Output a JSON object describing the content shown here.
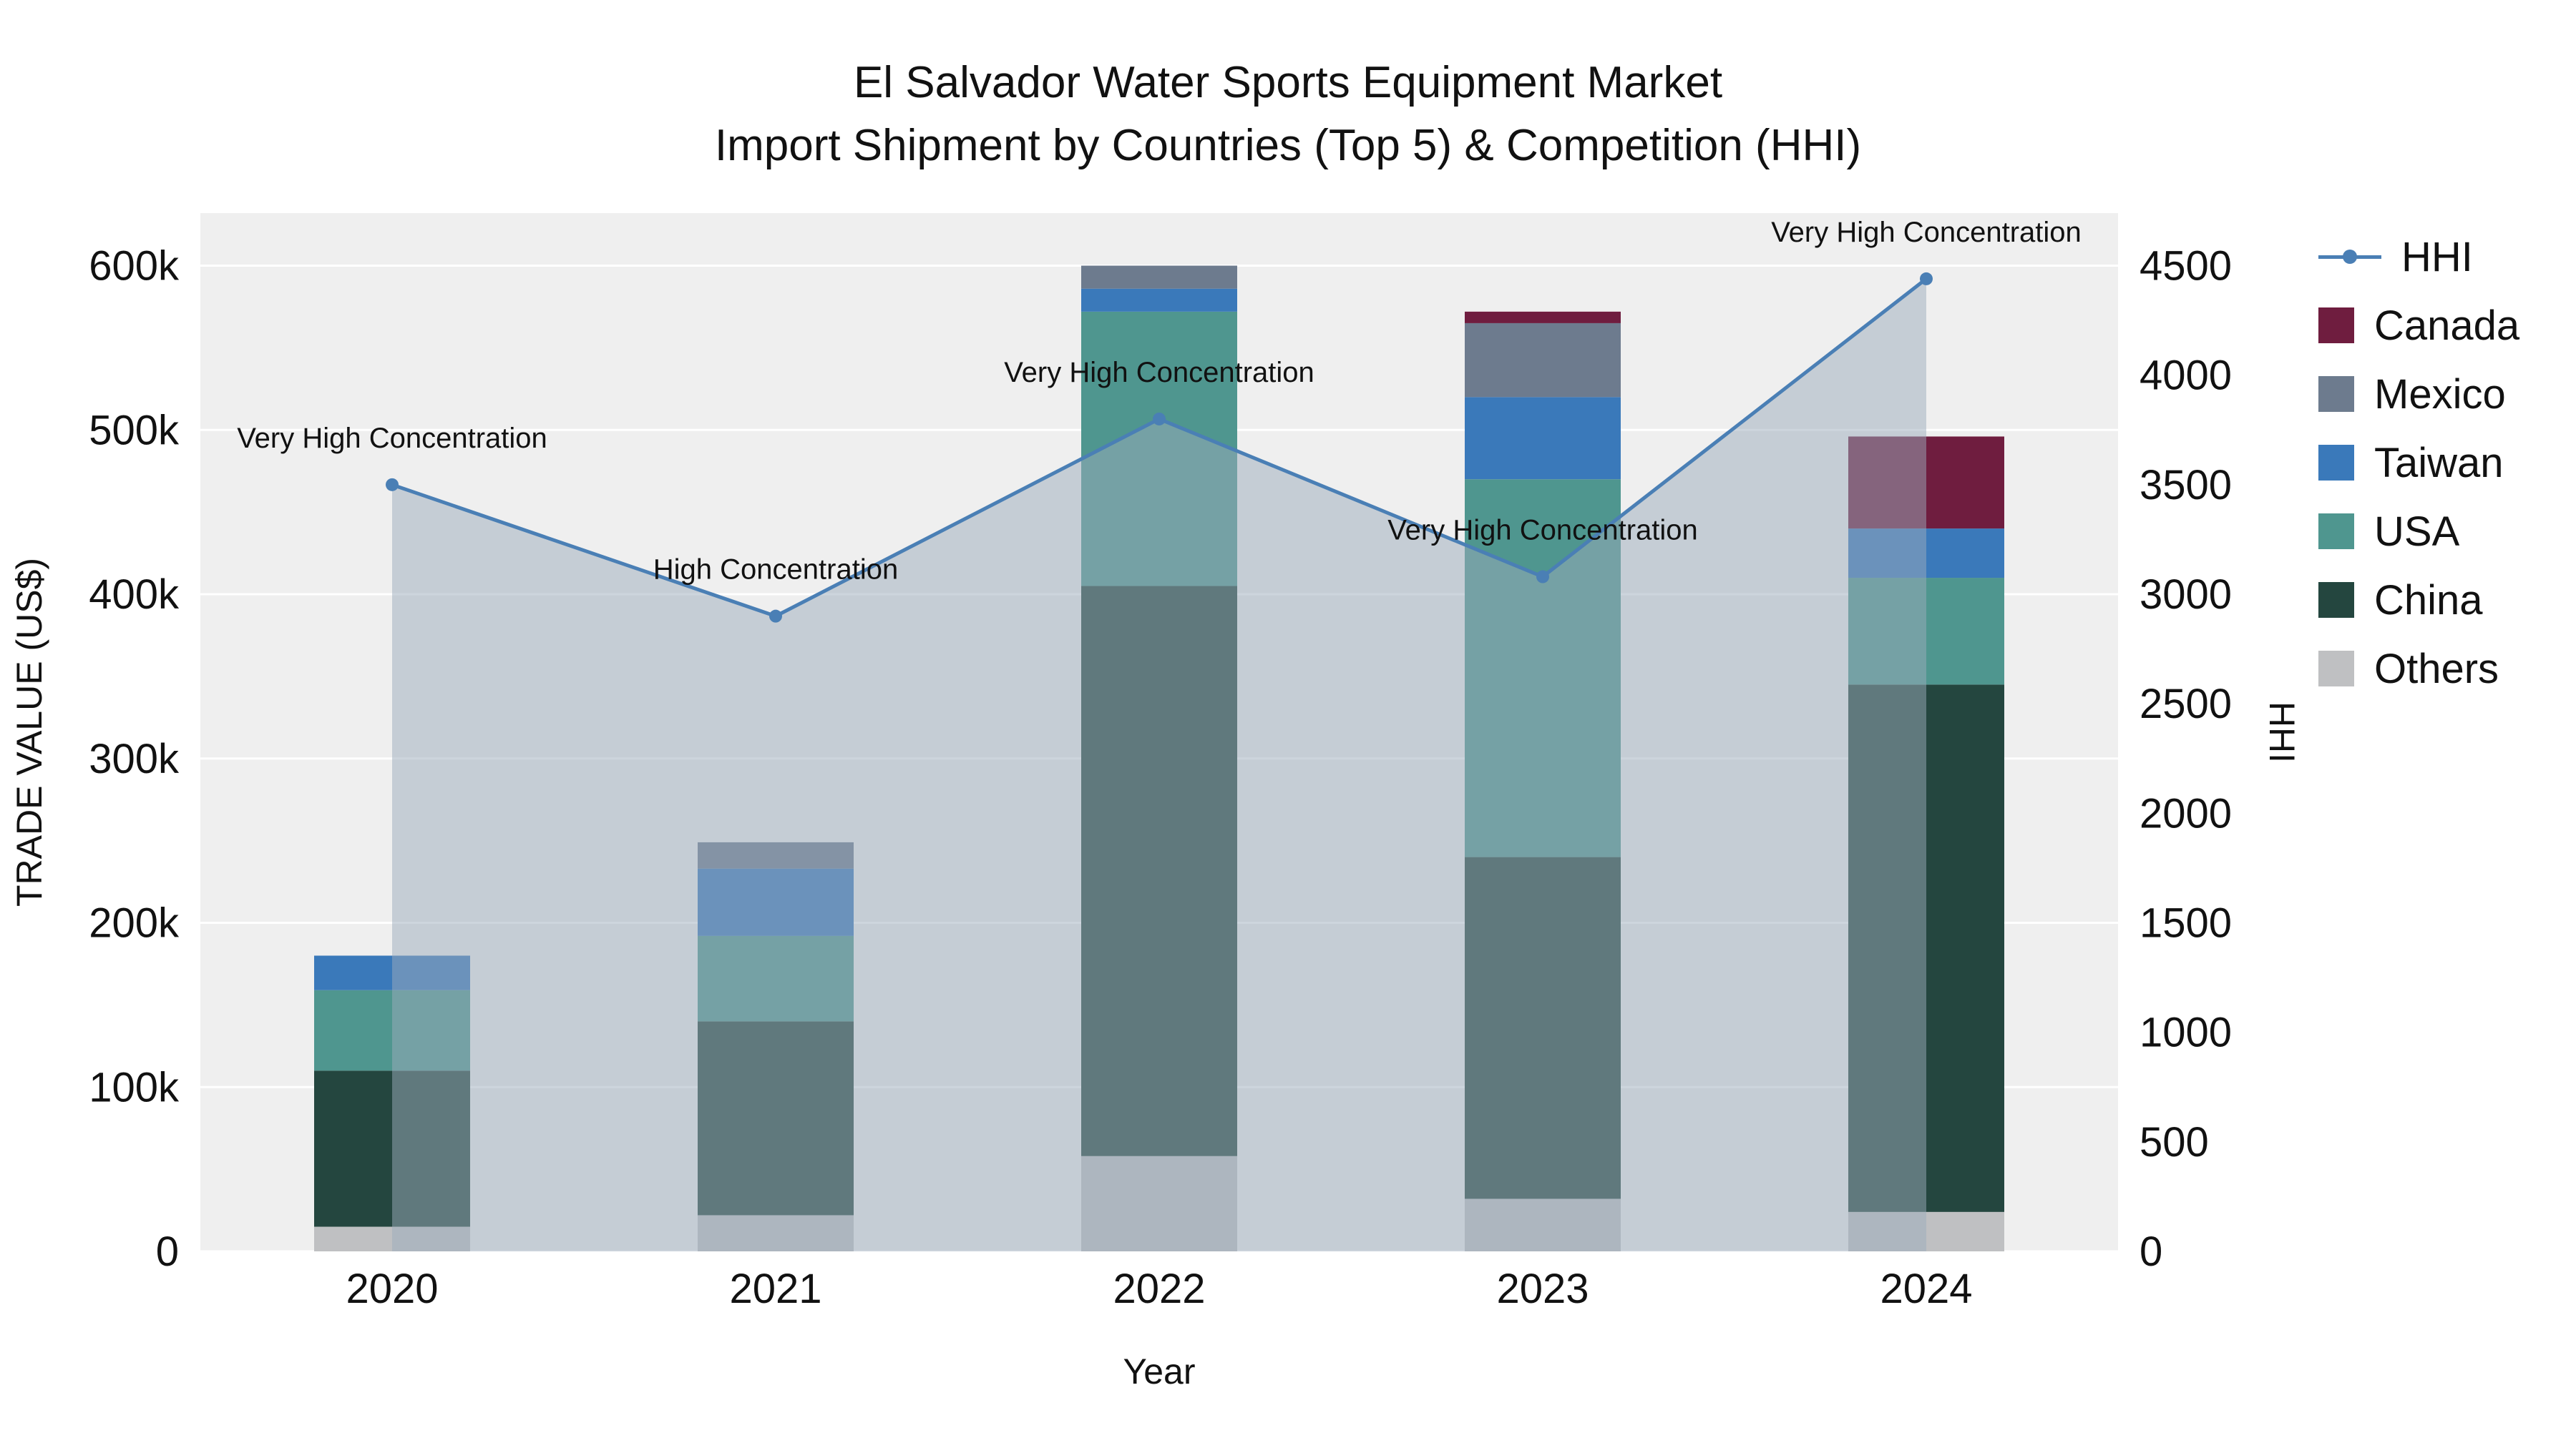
{
  "title": {
    "line1": "El Salvador Water Sports Equipment Market",
    "line2": "Import Shipment by Countries (Top 5) & Competition (HHI)"
  },
  "axes": {
    "y_left_label": "TRADE VALUE (US$)",
    "y_right_label": "HHI",
    "x_label": "Year",
    "y_left_ticks": [
      "0",
      "100k",
      "200k",
      "300k",
      "400k",
      "500k",
      "600k"
    ],
    "y_right_ticks": [
      "0",
      "500",
      "1000",
      "1500",
      "2000",
      "2500",
      "3000",
      "3500",
      "4000",
      "4500"
    ]
  },
  "legend": {
    "items": [
      {
        "label": "HHI",
        "type": "line",
        "color": "#4a7fb5"
      },
      {
        "label": "Canada",
        "type": "square",
        "color": "#6f1d3f"
      },
      {
        "label": "Mexico",
        "type": "square",
        "color": "#6d7b8e"
      },
      {
        "label": "Taiwan",
        "type": "square",
        "color": "#3a79ba"
      },
      {
        "label": "USA",
        "type": "square",
        "color": "#4f968f"
      },
      {
        "label": "China",
        "type": "square",
        "color": "#24463f"
      },
      {
        "label": "Others",
        "type": "square",
        "color": "#bfc0c2"
      }
    ]
  },
  "chart_data": {
    "type": "combo: stacked-bar + line-area",
    "title": "El Salvador Water Sports Equipment Market — Import Shipment by Countries (Top 5) & Competition (HHI)",
    "categories": [
      "2020",
      "2021",
      "2022",
      "2023",
      "2024"
    ],
    "bar_unit": "US$",
    "series": [
      {
        "name": "Others",
        "color": "#bfc0c2",
        "values": [
          15000,
          22000,
          58000,
          32000,
          24000
        ]
      },
      {
        "name": "China",
        "color": "#24463f",
        "values": [
          95000,
          118000,
          347000,
          208000,
          321000
        ]
      },
      {
        "name": "USA",
        "color": "#4f968f",
        "values": [
          49000,
          52000,
          167000,
          230000,
          65000
        ]
      },
      {
        "name": "Taiwan",
        "color": "#3a79ba",
        "values": [
          21000,
          41000,
          14000,
          50000,
          30000
        ]
      },
      {
        "name": "Mexico",
        "color": "#6d7b8e",
        "values": [
          0,
          16000,
          14000,
          45000,
          0
        ]
      },
      {
        "name": "Canada",
        "color": "#6f1d3f",
        "values": [
          0,
          0,
          0,
          7000,
          56000
        ]
      }
    ],
    "line": {
      "name": "HHI",
      "color": "#4a7fb5",
      "fill": "rgba(156,171,188,0.5)",
      "values": [
        3500,
        2900,
        3800,
        3080,
        4440
      ]
    },
    "annotations": [
      {
        "x": "2020",
        "text": "Very High Concentration"
      },
      {
        "x": "2021",
        "text": "High Concentration"
      },
      {
        "x": "2022",
        "text": "Very High Concentration"
      },
      {
        "x": "2023",
        "text": "Very High Concentration"
      },
      {
        "x": "2024",
        "text": "Very High Concentration"
      }
    ],
    "xlabel": "Year",
    "ylabel_left": "TRADE VALUE (US$)",
    "ylabel_right": "HHI",
    "y_left_range": [
      0,
      632000
    ],
    "y_right_range": [
      0,
      4740
    ],
    "y_left_tick_values": [
      0,
      100000,
      200000,
      300000,
      400000,
      500000,
      600000
    ],
    "y_right_tick_values": [
      0,
      500,
      1000,
      1500,
      2000,
      2500,
      3000,
      3500,
      4000,
      4500
    ],
    "grid": true,
    "legend_position": "right"
  }
}
